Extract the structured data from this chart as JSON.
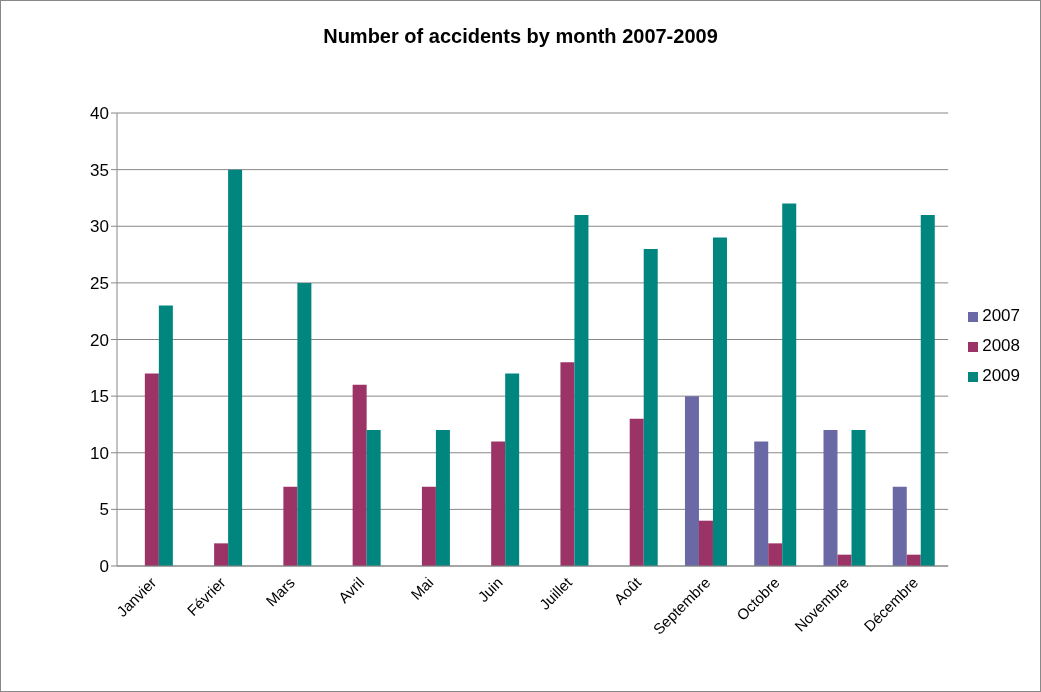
{
  "chart_data": {
    "type": "bar",
    "title": "Number of accidents by month 2007-2009",
    "categories": [
      "Janvier",
      "Février",
      "Mars",
      "Avril",
      "Mai",
      "Juin",
      "Juillet",
      "Août",
      "Septembre",
      "Octobre",
      "Novembre",
      "Décembre"
    ],
    "series": [
      {
        "name": "2007",
        "color": "#6b69a5",
        "values": [
          null,
          null,
          null,
          null,
          null,
          null,
          null,
          null,
          15,
          11,
          12,
          7
        ]
      },
      {
        "name": "2008",
        "color": "#9b3366",
        "values": [
          17,
          2,
          7,
          16,
          7,
          11,
          18,
          13,
          4,
          2,
          1,
          1
        ]
      },
      {
        "name": "2009",
        "color": "#00857f",
        "values": [
          23,
          35,
          25,
          12,
          12,
          17,
          31,
          28,
          29,
          32,
          12,
          31
        ]
      }
    ],
    "ylim": [
      0,
      40
    ],
    "yticks": [
      0,
      5,
      10,
      15,
      20,
      25,
      30,
      35,
      40
    ],
    "grid": "y",
    "legend": "right"
  }
}
